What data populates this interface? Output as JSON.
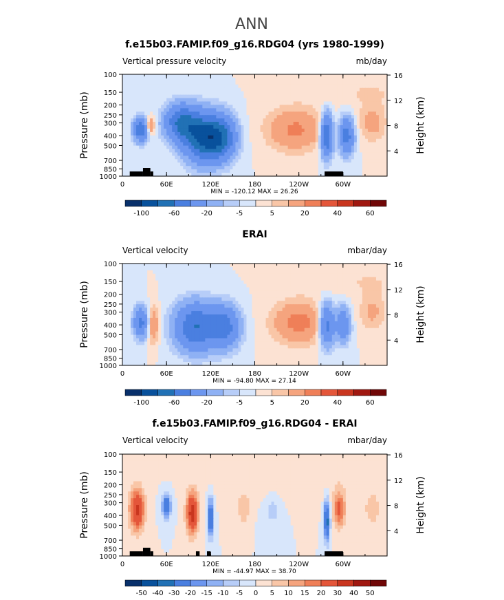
{
  "page_title": "ANN",
  "colors": {
    "negative_scale": [
      "#08306b",
      "#08519c",
      "#2171b5",
      "#4a7fe0",
      "#6c96ef",
      "#8fb1f4",
      "#b7cdf8",
      "#d8e6fb"
    ],
    "positive_scale": [
      "#fce2d3",
      "#f9c6a7",
      "#f5a47e",
      "#ef7f58",
      "#e4563a",
      "#c9361f",
      "#a01810",
      "#700707"
    ],
    "land": "#000000"
  },
  "colorbar_levels": {
    "top": [
      "-100",
      "-60",
      "-20",
      "-5",
      "5",
      "20",
      "40",
      "60"
    ],
    "bottom": [
      "-50",
      "-40",
      "-30",
      "-20",
      "-15",
      "-10",
      "-5",
      "0",
      "5",
      "10",
      "15",
      "20",
      "30",
      "40",
      "50"
    ]
  },
  "chart_data": [
    {
      "type": "heatmap",
      "title": "f.e15b03.FAMIP.f09_g16.RDG04 (yrs 1980-1999)",
      "left_string": "Vertical pressure velocity",
      "right_string": "mb/day",
      "ylabel": "Pressure (mb)",
      "y2label": "Height (km)",
      "x_ticks": [
        "0",
        "60E",
        "120E",
        "180",
        "120W",
        "60W"
      ],
      "x_tick_lon": [
        0,
        60,
        120,
        180,
        240,
        300
      ],
      "xlim": [
        0,
        360
      ],
      "y_ticks": [
        "100",
        "150",
        "200",
        "250",
        "300",
        "400",
        "500",
        "700",
        "850",
        "1000"
      ],
      "y_tick_p": [
        100,
        150,
        200,
        250,
        300,
        400,
        500,
        700,
        850,
        1000
      ],
      "y2_ticks": [
        "16",
        "12",
        "8",
        "4"
      ],
      "y2_tick_km": [
        16,
        12,
        8,
        4
      ],
      "ylim": [
        1000,
        100
      ],
      "yscale": "log",
      "stats": "MIN = -120.12   MAX =  26.26",
      "colorbar": "top",
      "features": [
        {
          "lon": 25,
          "p": 350,
          "wl": 10,
          "wp": 1.3,
          "a": -55
        },
        {
          "lon": 38,
          "p": 320,
          "wl": 6,
          "wp": 1.2,
          "a": 28
        },
        {
          "lon": 80,
          "p": 300,
          "wl": 22,
          "wp": 1.5,
          "a": -60
        },
        {
          "lon": 110,
          "p": 420,
          "wl": 25,
          "wp": 1.7,
          "a": -80
        },
        {
          "lon": 135,
          "p": 420,
          "wl": 20,
          "wp": 1.6,
          "a": -55
        },
        {
          "lon": 235,
          "p": 350,
          "wl": 38,
          "wp": 1.6,
          "a": 22
        },
        {
          "lon": 278,
          "p": 400,
          "wl": 8,
          "wp": 1.6,
          "a": -65
        },
        {
          "lon": 305,
          "p": 400,
          "wl": 10,
          "wp": 1.5,
          "a": -50
        },
        {
          "lon": 340,
          "p": 300,
          "wl": 18,
          "wp": 1.5,
          "a": 14
        },
        {
          "lon": 330,
          "p": 150,
          "wl": 80,
          "wp": 1.4,
          "a": 5
        }
      ],
      "land": [
        [
          10,
          28,
          900
        ],
        [
          28,
          38,
          830
        ],
        [
          38,
          42,
          900
        ],
        [
          275,
          300,
          900
        ]
      ]
    },
    {
      "type": "heatmap",
      "title": "ERAI",
      "left_string": "Vertical velocity",
      "right_string": "mbar/day",
      "ylabel": "Pressure (mb)",
      "y2label": "Height (km)",
      "x_ticks": [
        "0",
        "60E",
        "120E",
        "180",
        "120W",
        "60W"
      ],
      "x_tick_lon": [
        0,
        60,
        120,
        180,
        240,
        300
      ],
      "xlim": [
        0,
        360
      ],
      "y_ticks": [
        "100",
        "150",
        "200",
        "250",
        "300",
        "400",
        "500",
        "700",
        "850",
        "1000"
      ],
      "y_tick_p": [
        100,
        150,
        200,
        250,
        300,
        400,
        500,
        700,
        850,
        1000
      ],
      "y2_ticks": [
        "16",
        "12",
        "8",
        "4"
      ],
      "y2_tick_km": [
        16,
        12,
        8,
        4
      ],
      "ylim": [
        1000,
        100
      ],
      "yscale": "log",
      "stats": "MIN = -94.80   MAX =  27.14",
      "colorbar": "top",
      "features": [
        {
          "lon": 25,
          "p": 380,
          "wl": 10,
          "wp": 1.4,
          "a": -45
        },
        {
          "lon": 42,
          "p": 400,
          "wl": 7,
          "wp": 1.5,
          "a": 22
        },
        {
          "lon": 100,
          "p": 420,
          "wl": 28,
          "wp": 1.7,
          "a": -60
        },
        {
          "lon": 140,
          "p": 420,
          "wl": 20,
          "wp": 1.6,
          "a": -45
        },
        {
          "lon": 240,
          "p": 380,
          "wl": 35,
          "wp": 1.6,
          "a": 24
        },
        {
          "lon": 278,
          "p": 400,
          "wl": 10,
          "wp": 1.6,
          "a": -50
        },
        {
          "lon": 300,
          "p": 400,
          "wl": 10,
          "wp": 1.5,
          "a": -35
        },
        {
          "lon": 340,
          "p": 300,
          "wl": 18,
          "wp": 1.5,
          "a": 12
        },
        {
          "lon": 330,
          "p": 150,
          "wl": 80,
          "wp": 1.4,
          "a": 5
        }
      ],
      "land": []
    },
    {
      "type": "heatmap",
      "title": "f.e15b03.FAMIP.f09_g16.RDG04 - ERAI",
      "left_string": "Vertical velocity",
      "right_string": "mbar/day",
      "ylabel": "Pressure (mb)",
      "y2label": "Height (km)",
      "x_ticks": [
        "0",
        "60E",
        "120E",
        "180",
        "120W",
        "60W"
      ],
      "x_tick_lon": [
        0,
        60,
        120,
        180,
        240,
        300
      ],
      "xlim": [
        0,
        360
      ],
      "y_ticks": [
        "100",
        "150",
        "200",
        "250",
        "300",
        "400",
        "500",
        "700",
        "850",
        "1000"
      ],
      "y_tick_p": [
        100,
        150,
        200,
        250,
        300,
        400,
        500,
        700,
        850,
        1000
      ],
      "y2_ticks": [
        "16",
        "12",
        "8",
        "4"
      ],
      "y2_tick_km": [
        16,
        12,
        8,
        4
      ],
      "ylim": [
        1000,
        100
      ],
      "yscale": "log",
      "stats": "MIN = -44.97   MAX =  38.70",
      "colorbar": "bottom",
      "features": [
        {
          "lon": 20,
          "p": 350,
          "wl": 10,
          "wp": 1.6,
          "a": 32
        },
        {
          "lon": 60,
          "p": 320,
          "wl": 6,
          "wp": 1.3,
          "a": -30
        },
        {
          "lon": 95,
          "p": 380,
          "wl": 8,
          "wp": 1.6,
          "a": 35
        },
        {
          "lon": 120,
          "p": 420,
          "wl": 4,
          "wp": 1.5,
          "a": -35
        },
        {
          "lon": 165,
          "p": 350,
          "wl": 8,
          "wp": 1.4,
          "a": 10
        },
        {
          "lon": 205,
          "p": 350,
          "wl": 12,
          "wp": 1.5,
          "a": -7
        },
        {
          "lon": 278,
          "p": 450,
          "wl": 4,
          "wp": 1.6,
          "a": -35
        },
        {
          "lon": 295,
          "p": 350,
          "wl": 8,
          "wp": 1.5,
          "a": 22
        },
        {
          "lon": 340,
          "p": 350,
          "wl": 12,
          "wp": 1.5,
          "a": 8
        },
        {
          "lon": 230,
          "p": 180,
          "wl": 100,
          "wp": 1.6,
          "a": 4
        }
      ],
      "land": [
        [
          10,
          28,
          900
        ],
        [
          28,
          38,
          830
        ],
        [
          38,
          42,
          900
        ],
        [
          100,
          105,
          900
        ],
        [
          115,
          120,
          900
        ],
        [
          275,
          300,
          900
        ]
      ]
    }
  ]
}
